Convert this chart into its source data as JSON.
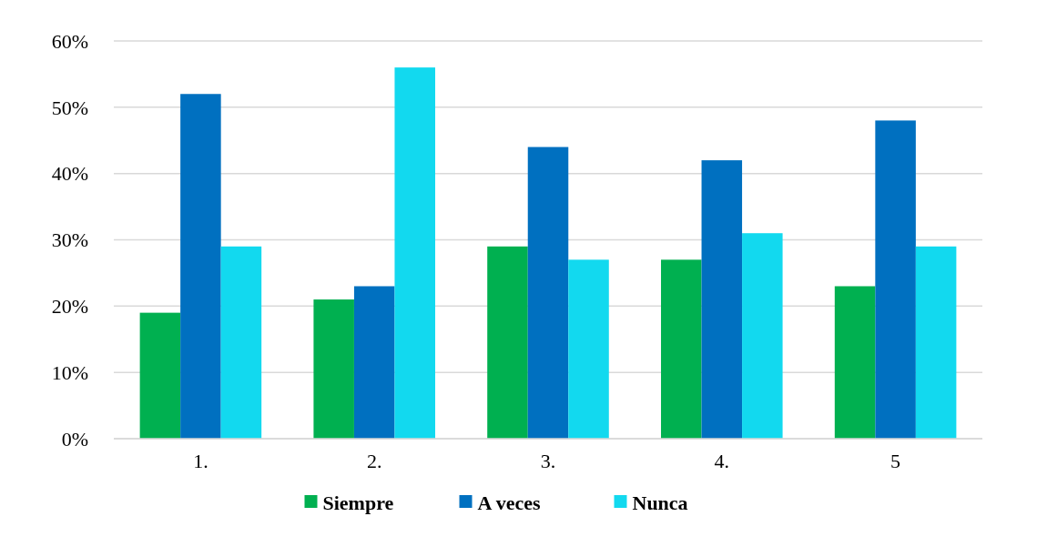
{
  "chart_data": {
    "type": "bar",
    "categories": [
      "1.",
      "2.",
      "3.",
      "4.",
      "5"
    ],
    "series": [
      {
        "name": "Siempre",
        "color": "#00b050",
        "values": [
          19,
          21,
          29,
          27,
          23
        ]
      },
      {
        "name": "A veces",
        "color": "#0070c0",
        "values": [
          52,
          23,
          44,
          42,
          48
        ]
      },
      {
        "name": "Nunca",
        "color": "#12d9ef",
        "values": [
          29,
          56,
          27,
          31,
          29
        ]
      }
    ],
    "ylim": [
      0,
      60
    ],
    "yticks": [
      {
        "value": 0,
        "label": "0%"
      },
      {
        "value": 10,
        "label": "10%"
      },
      {
        "value": 20,
        "label": "20%"
      },
      {
        "value": 30,
        "label": "30%"
      },
      {
        "value": 40,
        "label": "40%"
      },
      {
        "value": 50,
        "label": "50%"
      },
      {
        "value": 60,
        "label": "60%"
      }
    ],
    "grid": "y",
    "legend": "bottom"
  }
}
